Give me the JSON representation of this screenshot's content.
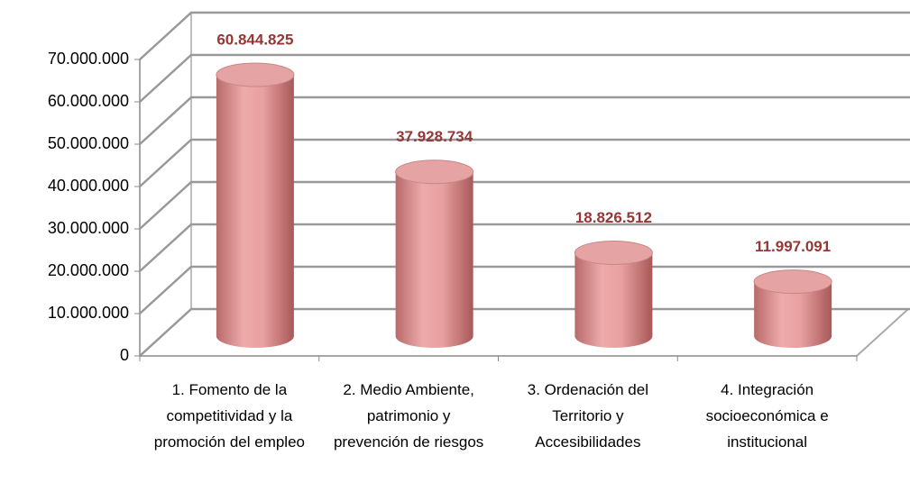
{
  "chart_data": {
    "type": "bar",
    "categories": [
      "1. Fomento de la competitividad y la promoción del empleo",
      "2. Medio Ambiente, patrimonio y prevención de riesgos",
      "3. Ordenación del Territorio y Accesibilidades",
      "4. Integración socioeconómica e institucional"
    ],
    "values": [
      60844825,
      37928734,
      18826512,
      11997091
    ],
    "value_labels": [
      "60.844.825",
      "37.928.734",
      "18.826.512",
      "11.997.091"
    ],
    "color": "#e6a3a3",
    "ylim": [
      0,
      70000000
    ],
    "yticks": [
      0,
      {
        "value": 10000000,
        "label": "10.000.000"
      },
      {
        "value": 20000000,
        "label": "20.000.000"
      },
      {
        "value": 30000000,
        "label": "30.000.000"
      },
      {
        "value": 40000000,
        "label": "40.000.000"
      },
      {
        "value": 50000000,
        "label": "50.000.000"
      },
      {
        "value": 60000000,
        "label": "60.000.000"
      },
      {
        "value": 70000000,
        "label": "70.000.000"
      }
    ],
    "grid": true
  }
}
